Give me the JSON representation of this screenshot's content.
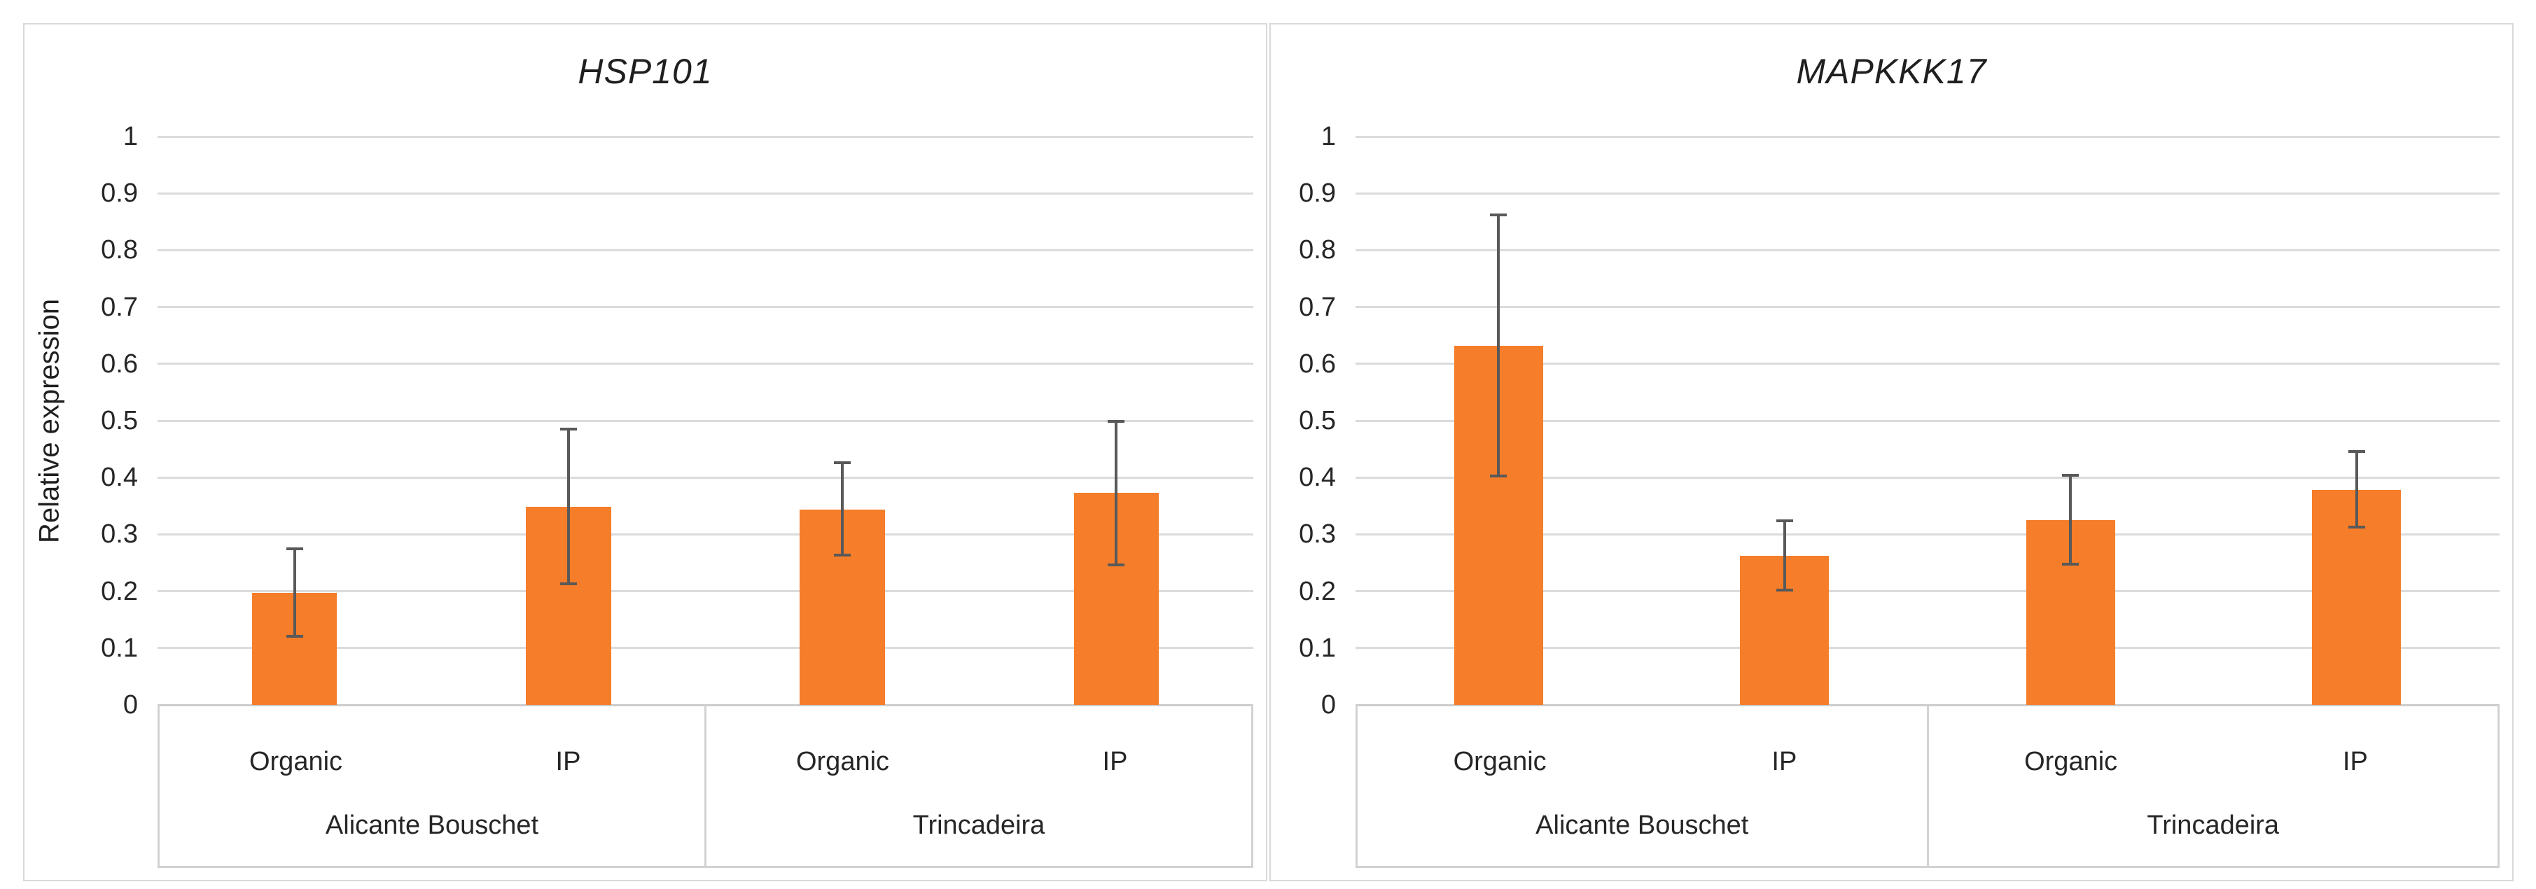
{
  "figure": {
    "background": "#FFFFFF",
    "panel_border_color": "#D9D9D9"
  },
  "colors": {
    "bar": "#F67D29",
    "gridline": "#DBDBDB",
    "axis_line": "#CCCCCC",
    "axis_box": "#D2D2D2",
    "error_bar": "#595959",
    "text": "#262626"
  },
  "chart_data": [
    {
      "type": "bar",
      "title": "HSP101",
      "ylabel": "Relative expression",
      "xlabel": "",
      "ylim": [
        0,
        1
      ],
      "ytick_step": 0.1,
      "yticks": [
        "0",
        "0.1",
        "0.2",
        "0.3",
        "0.4",
        "0.5",
        "0.6",
        "0.7",
        "0.8",
        "0.9",
        "1"
      ],
      "grid": true,
      "legend": "none",
      "bar_color": "#F67D29",
      "groups": [
        {
          "label": "Alicante Bouschet",
          "categories": [
            "Organic",
            "IP"
          ],
          "values": [
            0.197,
            0.349
          ],
          "error_low": [
            0.118,
            0.21
          ],
          "error_high": [
            0.277,
            0.488
          ]
        },
        {
          "label": "Trincadeira",
          "categories": [
            "Organic",
            "IP"
          ],
          "values": [
            0.344,
            0.373
          ],
          "error_low": [
            0.261,
            0.244
          ],
          "error_high": [
            0.428,
            0.501
          ]
        }
      ]
    },
    {
      "type": "bar",
      "title": "MAPKKK17",
      "ylabel": "",
      "xlabel": "",
      "ylim": [
        0,
        1
      ],
      "ytick_step": 0.1,
      "yticks": [
        "0",
        "0.1",
        "0.2",
        "0.3",
        "0.4",
        "0.5",
        "0.6",
        "0.7",
        "0.8",
        "0.9",
        "1"
      ],
      "grid": true,
      "legend": "none",
      "bar_color": "#F67D29",
      "groups": [
        {
          "label": "Alicante Bouschet",
          "categories": [
            "Organic",
            "IP"
          ],
          "values": [
            0.632,
            0.262
          ],
          "error_low": [
            0.4,
            0.2
          ],
          "error_high": [
            0.865,
            0.326
          ]
        },
        {
          "label": "Trincadeira",
          "categories": [
            "Organic",
            "IP"
          ],
          "values": [
            0.325,
            0.378
          ],
          "error_low": [
            0.245,
            0.31
          ],
          "error_high": [
            0.407,
            0.448
          ]
        }
      ]
    }
  ]
}
